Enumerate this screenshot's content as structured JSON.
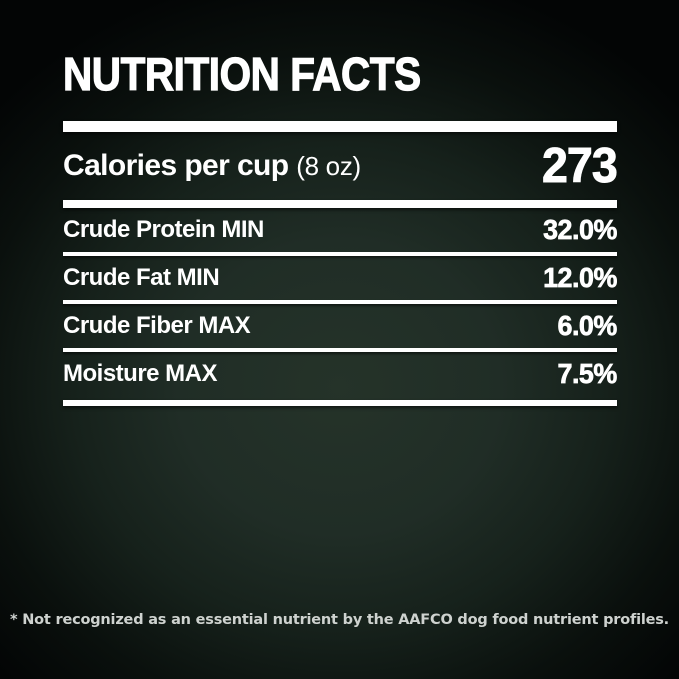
{
  "label": {
    "title": "NUTRITION FACTS",
    "calories": {
      "label": "Calories per cup",
      "unit": "(8 oz)",
      "value": "273"
    },
    "rows": [
      {
        "label": "Crude Protein MIN",
        "value": "32.0%"
      },
      {
        "label": "Crude Fat MIN",
        "value": "12.0%"
      },
      {
        "label": "Crude Fiber MAX",
        "value": "6.0%"
      },
      {
        "label": "Moisture MAX",
        "value": "7.5%"
      }
    ],
    "footnote": "* Not recognized as an essential nutrient by the AAFCO dog food nutrient profiles.",
    "colors": {
      "background_center": "#253329",
      "background_edge": "#030505",
      "text": "#ffffff",
      "footnote_text": "#ced2cf"
    }
  }
}
